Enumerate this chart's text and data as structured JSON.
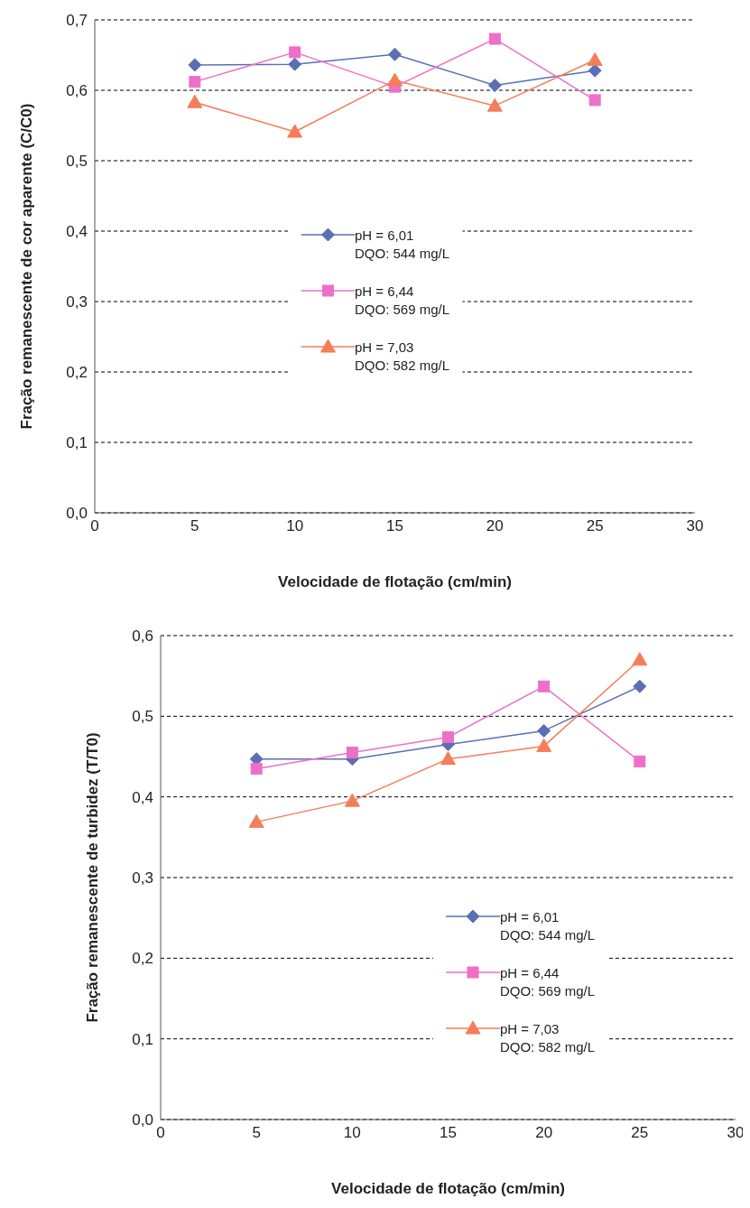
{
  "chart_data": [
    {
      "type": "line",
      "xlabel": "Velocidade de flotação (cm/min)",
      "ylabel": "Fração remanescente de cor aparente (C/C0)",
      "x": [
        5,
        10,
        15,
        20,
        25
      ],
      "series": [
        {
          "name": "pH = 6,01\nDQO: 544 mg/L",
          "color": "#5b6fb5",
          "marker": "diamond",
          "values": [
            0.636,
            0.637,
            0.651,
            0.607,
            0.628
          ]
        },
        {
          "name": "pH = 6,44\nDQO: 569 mg/L",
          "color": "#ee6fc8",
          "marker": "square",
          "values": [
            0.612,
            0.654,
            0.605,
            0.673,
            0.586
          ]
        },
        {
          "name": "pH = 7,03\nDQO: 582 mg/L",
          "color": "#f47d5a",
          "marker": "triangle",
          "values": [
            0.583,
            0.541,
            0.614,
            0.578,
            0.643
          ]
        }
      ],
      "xlim": [
        0,
        30
      ],
      "xticks": [
        0,
        5,
        10,
        15,
        20,
        25,
        30
      ],
      "ylim": [
        0,
        0.7
      ],
      "yticks": [
        {
          "value": 0,
          "label": "0,0"
        },
        {
          "value": 0.1,
          "label": "0,1"
        },
        {
          "value": 0.2,
          "label": "0,2"
        },
        {
          "value": 0.3,
          "label": "0,3"
        },
        {
          "value": 0.4,
          "label": "0,4"
        },
        {
          "value": 0.5,
          "label": "0,5"
        },
        {
          "value": 0.6,
          "label": "0,6"
        },
        {
          "value": 0.7,
          "label": "0,7"
        }
      ],
      "grid": "y",
      "legend": "center"
    },
    {
      "type": "line",
      "xlabel": "Velocidade de flotação (cm/min)",
      "ylabel": "Fração remanescente de turbidez (T/T0)",
      "x": [
        5,
        10,
        15,
        20,
        25
      ],
      "series": [
        {
          "name": "pH = 6,01\nDQO: 544 mg/L",
          "color": "#5b6fb5",
          "marker": "diamond",
          "values": [
            0.447,
            0.447,
            0.465,
            0.482,
            0.537
          ]
        },
        {
          "name": "pH = 6,44\nDQO: 569 mg/L",
          "color": "#ee6fc8",
          "marker": "square",
          "values": [
            0.435,
            0.455,
            0.474,
            0.537,
            0.444
          ]
        },
        {
          "name": "pH = 7,03\nDQO: 582 mg/L",
          "color": "#f47d5a",
          "marker": "triangle",
          "values": [
            0.369,
            0.395,
            0.447,
            0.463,
            0.57
          ]
        }
      ],
      "xlim": [
        0,
        30
      ],
      "xticks": [
        0,
        5,
        10,
        15,
        20,
        25,
        30
      ],
      "ylim": [
        0,
        0.6
      ],
      "yticks": [
        {
          "value": 0,
          "label": "0,0"
        },
        {
          "value": 0.1,
          "label": "0,1"
        },
        {
          "value": 0.2,
          "label": "0,2"
        },
        {
          "value": 0.3,
          "label": "0,3"
        },
        {
          "value": 0.4,
          "label": "0,4"
        },
        {
          "value": 0.5,
          "label": "0,5"
        },
        {
          "value": 0.6,
          "label": "0,6"
        }
      ],
      "grid": "y",
      "legend": "bottom right"
    }
  ]
}
